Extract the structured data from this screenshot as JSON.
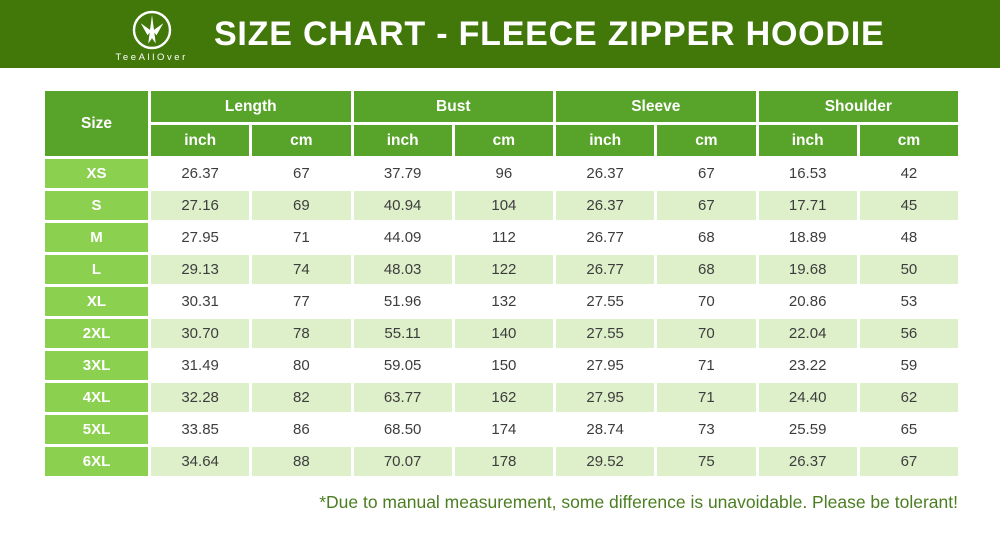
{
  "header": {
    "logo": {
      "brand": "TeeAllOver",
      "icon": "tree-logo-icon"
    },
    "title": "SIZE CHART - FLEECE ZIPPER HOODIE"
  },
  "colors": {
    "header_bar_green": "#42780a",
    "table_header_green": "#58a32a",
    "size_column_lime": "#8cd050",
    "stripe_row_light_green": "#def0ca",
    "data_text": "#3d3d3d",
    "note_text": "#4b7d21"
  },
  "table": {
    "corner_label": "Size",
    "groups": [
      {
        "label": "Length"
      },
      {
        "label": "Bust"
      },
      {
        "label": "Sleeve"
      },
      {
        "label": "Shoulder"
      }
    ],
    "unit_headers": [
      "inch",
      "cm",
      "inch",
      "cm",
      "inch",
      "cm",
      "inch",
      "cm"
    ],
    "rows": [
      {
        "size": "XS",
        "values": [
          "26.37",
          "67",
          "37.79",
          "96",
          "26.37",
          "67",
          "16.53",
          "42"
        ]
      },
      {
        "size": "S",
        "values": [
          "27.16",
          "69",
          "40.94",
          "104",
          "26.37",
          "67",
          "17.71",
          "45"
        ]
      },
      {
        "size": "M",
        "values": [
          "27.95",
          "71",
          "44.09",
          "112",
          "26.77",
          "68",
          "18.89",
          "48"
        ]
      },
      {
        "size": "L",
        "values": [
          "29.13",
          "74",
          "48.03",
          "122",
          "26.77",
          "68",
          "19.68",
          "50"
        ]
      },
      {
        "size": "XL",
        "values": [
          "30.31",
          "77",
          "51.96",
          "132",
          "27.55",
          "70",
          "20.86",
          "53"
        ]
      },
      {
        "size": "2XL",
        "values": [
          "30.70",
          "78",
          "55.11",
          "140",
          "27.55",
          "70",
          "22.04",
          "56"
        ]
      },
      {
        "size": "3XL",
        "values": [
          "31.49",
          "80",
          "59.05",
          "150",
          "27.95",
          "71",
          "23.22",
          "59"
        ]
      },
      {
        "size": "4XL",
        "values": [
          "32.28",
          "82",
          "63.77",
          "162",
          "27.95",
          "71",
          "24.40",
          "62"
        ]
      },
      {
        "size": "5XL",
        "values": [
          "33.85",
          "86",
          "68.50",
          "174",
          "28.74",
          "73",
          "25.59",
          "65"
        ]
      },
      {
        "size": "6XL",
        "values": [
          "34.64",
          "88",
          "70.07",
          "178",
          "29.52",
          "75",
          "26.37",
          "67"
        ]
      }
    ]
  },
  "footer": {
    "note": "*Due to manual measurement, some difference is unavoidable. Please be tolerant!"
  },
  "chart_data": {
    "type": "table",
    "title": "SIZE CHART - FLEECE ZIPPER HOODIE",
    "columns": [
      "Size",
      "Length (inch)",
      "Length (cm)",
      "Bust (inch)",
      "Bust (cm)",
      "Sleeve (inch)",
      "Sleeve (cm)",
      "Shoulder (inch)",
      "Shoulder (cm)"
    ],
    "rows": [
      [
        "XS",
        26.37,
        67,
        37.79,
        96,
        26.37,
        67,
        16.53,
        42
      ],
      [
        "S",
        27.16,
        69,
        40.94,
        104,
        26.37,
        67,
        17.71,
        45
      ],
      [
        "M",
        27.95,
        71,
        44.09,
        112,
        26.77,
        68,
        18.89,
        48
      ],
      [
        "L",
        29.13,
        74,
        48.03,
        122,
        26.77,
        68,
        19.68,
        50
      ],
      [
        "XL",
        30.31,
        77,
        51.96,
        132,
        27.55,
        70,
        20.86,
        53
      ],
      [
        "2XL",
        30.7,
        78,
        55.11,
        140,
        27.55,
        70,
        22.04,
        56
      ],
      [
        "3XL",
        31.49,
        80,
        59.05,
        150,
        27.95,
        71,
        23.22,
        59
      ],
      [
        "4XL",
        32.28,
        82,
        63.77,
        162,
        27.95,
        71,
        24.4,
        62
      ],
      [
        "5XL",
        33.85,
        86,
        68.5,
        174,
        28.74,
        73,
        25.59,
        65
      ],
      [
        "6XL",
        34.64,
        88,
        70.07,
        178,
        29.52,
        75,
        26.37,
        67
      ]
    ]
  }
}
